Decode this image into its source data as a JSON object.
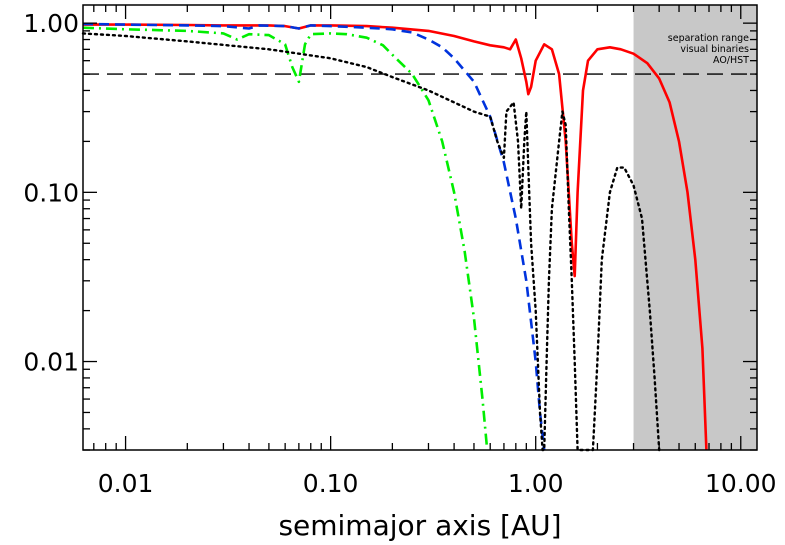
{
  "chart_data": {
    "type": "line",
    "title": "",
    "xlabel": "semimajor axis [AU]",
    "ylabel": "",
    "x_scale": "log",
    "y_scale": "log",
    "xlim": [
      0.0062,
      12.0
    ],
    "ylim": [
      0.003,
      1.28
    ],
    "x_ticks": [
      {
        "value": 0.01,
        "label": "0.01"
      },
      {
        "value": 0.1,
        "label": "0.10"
      },
      {
        "value": 1.0,
        "label": "1.00"
      },
      {
        "value": 10.0,
        "label": "10.00"
      }
    ],
    "y_ticks": [
      {
        "value": 0.01,
        "label": "0.01"
      },
      {
        "value": 0.1,
        "label": "0.10"
      },
      {
        "value": 1.0,
        "label": "1.00"
      }
    ],
    "grid": false,
    "legend": "none",
    "shaded_region": {
      "x_from": 3.0,
      "x_to": 12.0,
      "color": "#c8c8c8",
      "label_lines": [
        "separation range",
        "visual binaries",
        "AO/HST"
      ]
    },
    "reference_line": {
      "y": 0.5,
      "style": "dashed",
      "color": "#000000"
    },
    "series": [
      {
        "style": "solid",
        "color": "#ff0000",
        "points": [
          [
            0.0062,
            0.98
          ],
          [
            0.01,
            0.98
          ],
          [
            0.02,
            0.975
          ],
          [
            0.03,
            0.97
          ],
          [
            0.05,
            0.97
          ],
          [
            0.06,
            0.96
          ],
          [
            0.07,
            0.93
          ],
          [
            0.08,
            0.97
          ],
          [
            0.1,
            0.97
          ],
          [
            0.15,
            0.96
          ],
          [
            0.2,
            0.94
          ],
          [
            0.3,
            0.9
          ],
          [
            0.4,
            0.84
          ],
          [
            0.5,
            0.78
          ],
          [
            0.6,
            0.74
          ],
          [
            0.7,
            0.72
          ],
          [
            0.75,
            0.7
          ],
          [
            0.8,
            0.8
          ],
          [
            0.85,
            0.62
          ],
          [
            0.9,
            0.45
          ],
          [
            0.92,
            0.38
          ],
          [
            0.95,
            0.42
          ],
          [
            1.0,
            0.6
          ],
          [
            1.1,
            0.75
          ],
          [
            1.2,
            0.7
          ],
          [
            1.3,
            0.5
          ],
          [
            1.4,
            0.2
          ],
          [
            1.5,
            0.05
          ],
          [
            1.55,
            0.032
          ],
          [
            1.6,
            0.1
          ],
          [
            1.7,
            0.4
          ],
          [
            1.8,
            0.6
          ],
          [
            2.0,
            0.7
          ],
          [
            2.3,
            0.72
          ],
          [
            2.6,
            0.7
          ],
          [
            3.0,
            0.66
          ],
          [
            3.5,
            0.58
          ],
          [
            4.0,
            0.47
          ],
          [
            4.5,
            0.34
          ],
          [
            5.0,
            0.2
          ],
          [
            5.5,
            0.1
          ],
          [
            6.0,
            0.04
          ],
          [
            6.5,
            0.012
          ],
          [
            6.8,
            0.003
          ]
        ]
      },
      {
        "style": "dashed",
        "color": "#0033dd",
        "points": [
          [
            0.0062,
            0.99
          ],
          [
            0.01,
            0.98
          ],
          [
            0.02,
            0.97
          ],
          [
            0.03,
            0.96
          ],
          [
            0.04,
            0.93
          ],
          [
            0.045,
            0.97
          ],
          [
            0.06,
            0.96
          ],
          [
            0.07,
            0.93
          ],
          [
            0.08,
            0.97
          ],
          [
            0.1,
            0.96
          ],
          [
            0.15,
            0.94
          ],
          [
            0.2,
            0.92
          ],
          [
            0.25,
            0.88
          ],
          [
            0.3,
            0.8
          ],
          [
            0.35,
            0.72
          ],
          [
            0.4,
            0.62
          ],
          [
            0.5,
            0.45
          ],
          [
            0.6,
            0.28
          ],
          [
            0.7,
            0.15
          ],
          [
            0.8,
            0.07
          ],
          [
            0.9,
            0.03
          ],
          [
            1.0,
            0.01
          ],
          [
            1.05,
            0.005
          ],
          [
            1.1,
            0.003
          ]
        ]
      },
      {
        "style": "dashdot",
        "color": "#00ee00",
        "points": [
          [
            0.0062,
            0.94
          ],
          [
            0.01,
            0.92
          ],
          [
            0.02,
            0.9
          ],
          [
            0.03,
            0.87
          ],
          [
            0.035,
            0.8
          ],
          [
            0.04,
            0.86
          ],
          [
            0.05,
            0.85
          ],
          [
            0.06,
            0.75
          ],
          [
            0.065,
            0.55
          ],
          [
            0.07,
            0.45
          ],
          [
            0.075,
            0.75
          ],
          [
            0.08,
            0.86
          ],
          [
            0.1,
            0.87
          ],
          [
            0.12,
            0.86
          ],
          [
            0.15,
            0.82
          ],
          [
            0.18,
            0.74
          ],
          [
            0.2,
            0.65
          ],
          [
            0.25,
            0.5
          ],
          [
            0.3,
            0.35
          ],
          [
            0.35,
            0.2
          ],
          [
            0.4,
            0.1
          ],
          [
            0.45,
            0.045
          ],
          [
            0.5,
            0.018
          ],
          [
            0.55,
            0.006
          ],
          [
            0.58,
            0.003
          ]
        ]
      },
      {
        "style": "dotted",
        "color": "#000000",
        "points": [
          [
            0.0062,
            0.87
          ],
          [
            0.01,
            0.84
          ],
          [
            0.02,
            0.78
          ],
          [
            0.05,
            0.7
          ],
          [
            0.1,
            0.62
          ],
          [
            0.15,
            0.55
          ],
          [
            0.2,
            0.48
          ],
          [
            0.3,
            0.4
          ],
          [
            0.4,
            0.34
          ],
          [
            0.5,
            0.3
          ],
          [
            0.6,
            0.28
          ],
          [
            0.65,
            0.2
          ],
          [
            0.7,
            0.16
          ],
          [
            0.72,
            0.3
          ],
          [
            0.78,
            0.34
          ],
          [
            0.82,
            0.2
          ],
          [
            0.85,
            0.08
          ],
          [
            0.88,
            0.2
          ],
          [
            0.9,
            0.3
          ],
          [
            0.93,
            0.1
          ],
          [
            0.95,
            0.05
          ],
          [
            1.0,
            0.02
          ],
          [
            1.05,
            0.005
          ],
          [
            1.08,
            0.003
          ],
          [
            1.1,
            0.003
          ],
          [
            1.13,
            0.01
          ],
          [
            1.16,
            0.03
          ],
          [
            1.2,
            0.08
          ],
          [
            1.3,
            0.2
          ],
          [
            1.35,
            0.3
          ],
          [
            1.4,
            0.25
          ],
          [
            1.45,
            0.08
          ],
          [
            1.5,
            0.03
          ],
          [
            1.55,
            0.01
          ],
          [
            1.6,
            0.003
          ],
          [
            1.9,
            0.003
          ],
          [
            2.0,
            0.01
          ],
          [
            2.1,
            0.04
          ],
          [
            2.3,
            0.1
          ],
          [
            2.5,
            0.14
          ],
          [
            2.7,
            0.14
          ],
          [
            3.0,
            0.11
          ],
          [
            3.3,
            0.07
          ],
          [
            3.6,
            0.02
          ],
          [
            3.8,
            0.008
          ],
          [
            4.0,
            0.003
          ]
        ]
      }
    ]
  }
}
